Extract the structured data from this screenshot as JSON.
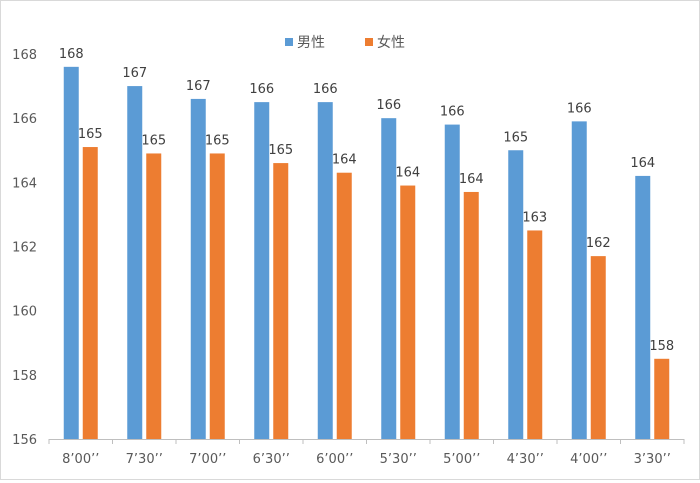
{
  "chart_data": {
    "type": "bar",
    "categories": [
      "8’00’’",
      "7’30’’",
      "7’00’’",
      "6’30’’",
      "6’00’’",
      "5’30’’",
      "5’00’’",
      "4’30’’",
      "4’00’’",
      "3’30’’"
    ],
    "series": [
      {
        "name": "男性",
        "color": "#5b9bd5",
        "values": [
          167.6,
          167.0,
          166.6,
          166.5,
          166.5,
          166.0,
          165.8,
          165.0,
          165.9,
          164.2
        ],
        "labels": [
          "168",
          "167",
          "167",
          "166",
          "166",
          "166",
          "166",
          "165",
          "166",
          "164"
        ]
      },
      {
        "name": "女性",
        "color": "#ed7d31",
        "values": [
          165.1,
          164.9,
          164.9,
          164.6,
          164.3,
          163.9,
          163.7,
          162.5,
          161.7,
          158.5
        ],
        "labels": [
          "165",
          "165",
          "165",
          "165",
          "164",
          "164",
          "164",
          "163",
          "162",
          "158"
        ]
      }
    ],
    "ylim": [
      156,
      168
    ],
    "yticks": [
      "156",
      "158",
      "160",
      "162",
      "164",
      "166",
      "168"
    ],
    "xlabel": "",
    "ylabel": "",
    "title": "",
    "grid": false,
    "legend": "top-center"
  }
}
